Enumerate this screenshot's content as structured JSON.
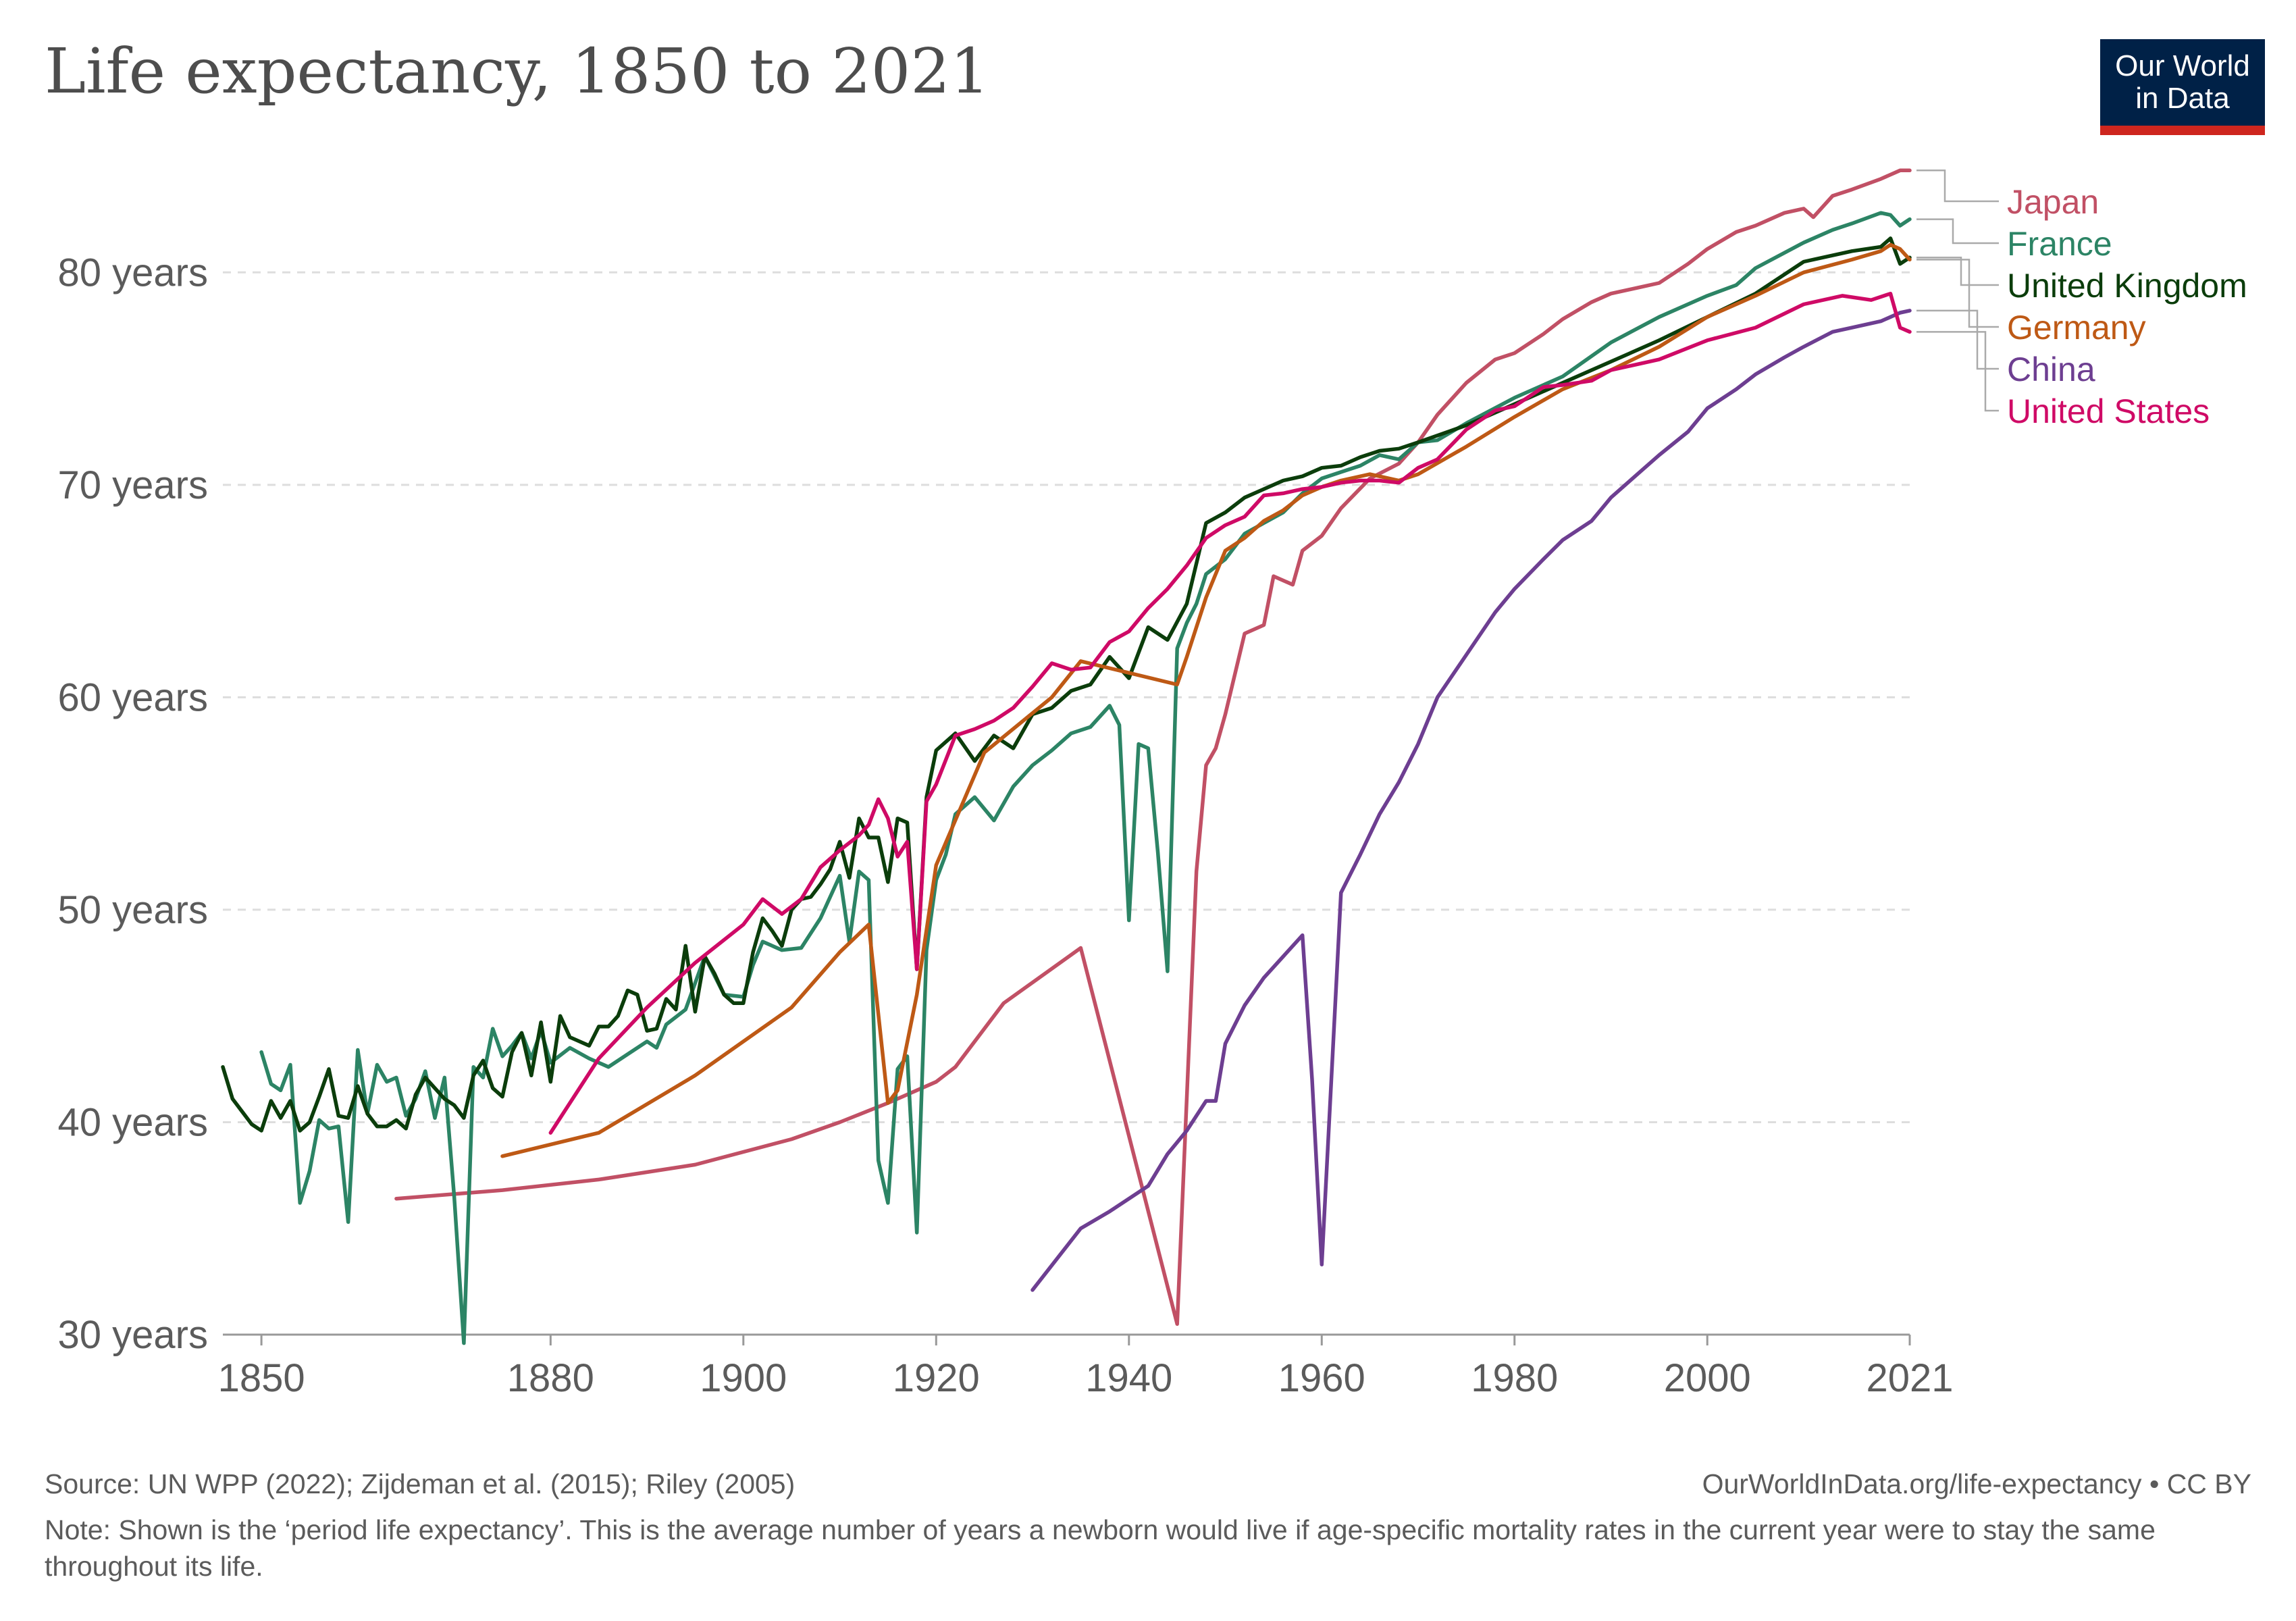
{
  "header": {
    "title": "Life expectancy, 1850 to 2021",
    "logo_line1": "Our World",
    "logo_line2": "in Data"
  },
  "footer": {
    "source": "Source: UN WPP (2022); Zijdeman et al. (2015); Riley (2005)",
    "license": "OurWorldInData.org/life-expectancy • CC BY",
    "note": "Note: Shown is the ‘period life expectancy’. This is the average number of years a newborn would live if age-specific mortality rates in the current year were to stay the same throughout its life."
  },
  "colors": {
    "Japan": "#c15065",
    "France": "#2c8465",
    "United Kingdom": "#0b3d0b",
    "Germany": "#be5915",
    "China": "#6d3e91",
    "United States": "#cf0a66",
    "grid": "#dddddd",
    "axis_text": "#5b5b5b"
  },
  "chart_data": {
    "type": "line",
    "title": "Life expectancy, 1850 to 2021",
    "xlabel": "",
    "ylabel": "",
    "xlim": [
      1846,
      2021
    ],
    "ylim": [
      30,
      85
    ],
    "x_ticks": [
      1850,
      1880,
      1900,
      1920,
      1940,
      1960,
      1980,
      2000,
      2021
    ],
    "x_tick_labels": [
      "1850",
      "1880",
      "1900",
      "1920",
      "1940",
      "1960",
      "1980",
      "2000",
      "2021"
    ],
    "y_ticks": [
      30,
      40,
      50,
      60,
      70,
      80
    ],
    "y_tick_labels": [
      "30 years",
      "40 years",
      "50 years",
      "60 years",
      "70 years",
      "80 years"
    ],
    "grid": true,
    "legend": "right",
    "series": [
      {
        "name": "Japan",
        "x": [
          1864,
          1875,
          1885,
          1895,
          1905,
          1910,
          1915,
          1920,
          1922,
          1927,
          1935,
          1945,
          1947,
          1948,
          1949,
          1950,
          1952,
          1954,
          1955,
          1957,
          1958,
          1960,
          1962,
          1965,
          1968,
          1970,
          1972,
          1975,
          1978,
          1980,
          1983,
          1985,
          1988,
          1990,
          1993,
          1995,
          1998,
          2000,
          2003,
          2005,
          2008,
          2010,
          2011,
          2013,
          2015,
          2018,
          2020,
          2021
        ],
        "y": [
          36.4,
          36.8,
          37.3,
          38.0,
          39.2,
          40.0,
          40.9,
          41.9,
          42.6,
          45.6,
          48.2,
          30.5,
          51.8,
          56.8,
          57.6,
          59.2,
          63.0,
          63.4,
          65.7,
          65.3,
          66.9,
          67.6,
          68.9,
          70.3,
          71.0,
          72.0,
          73.3,
          74.8,
          75.9,
          76.2,
          77.1,
          77.8,
          78.6,
          79.0,
          79.3,
          79.5,
          80.4,
          81.1,
          81.9,
          82.2,
          82.8,
          83.0,
          82.6,
          83.6,
          83.9,
          84.4,
          84.8,
          84.8
        ]
      },
      {
        "name": "France",
        "x": [
          1850,
          1851,
          1852,
          1853,
          1854,
          1855,
          1856,
          1857,
          1858,
          1859,
          1860,
          1861,
          1862,
          1863,
          1864,
          1865,
          1866,
          1867,
          1868,
          1869,
          1870,
          1871,
          1872,
          1873,
          1874,
          1875,
          1876,
          1877,
          1878,
          1879,
          1880,
          1882,
          1884,
          1886,
          1888,
          1890,
          1891,
          1892,
          1894,
          1896,
          1898,
          1900,
          1901,
          1902,
          1904,
          1906,
          1908,
          1910,
          1911,
          1912,
          1913,
          1914,
          1915,
          1916,
          1917,
          1918,
          1919,
          1920,
          1921,
          1922,
          1924,
          1926,
          1928,
          1930,
          1932,
          1934,
          1936,
          1938,
          1939,
          1940,
          1941,
          1942,
          1943,
          1944,
          1945,
          1946,
          1947,
          1948,
          1950,
          1952,
          1954,
          1956,
          1958,
          1960,
          1962,
          1964,
          1966,
          1968,
          1970,
          1972,
          1975,
          1980,
          1985,
          1990,
          1995,
          2000,
          2003,
          2005,
          2010,
          2013,
          2015,
          2018,
          2019,
          2020,
          2021
        ],
        "y": [
          43.3,
          41.8,
          41.5,
          42.7,
          36.2,
          37.7,
          40.1,
          39.7,
          39.8,
          35.3,
          43.4,
          40.4,
          42.7,
          41.9,
          42.1,
          40.3,
          41.1,
          42.4,
          40.2,
          42.1,
          36.5,
          29.6,
          42.6,
          42.1,
          44.4,
          43.1,
          43.6,
          44.2,
          43.0,
          44.3,
          42.8,
          43.5,
          43.0,
          42.6,
          43.2,
          43.8,
          43.5,
          44.6,
          45.3,
          47.8,
          46.0,
          45.9,
          47.4,
          48.5,
          48.1,
          48.2,
          49.6,
          51.6,
          48.5,
          51.8,
          51.4,
          38.2,
          36.2,
          42.5,
          43.1,
          34.8,
          48.1,
          51.4,
          52.6,
          54.5,
          55.3,
          54.2,
          55.8,
          56.8,
          57.5,
          58.3,
          58.6,
          59.6,
          58.7,
          49.5,
          57.8,
          57.6,
          52.7,
          47.1,
          62.3,
          63.5,
          64.4,
          65.8,
          66.5,
          67.7,
          68.2,
          68.7,
          69.6,
          70.3,
          70.6,
          70.9,
          71.4,
          71.2,
          72.0,
          72.1,
          72.9,
          74.1,
          75.1,
          76.7,
          77.9,
          78.9,
          79.4,
          80.2,
          81.4,
          82.0,
          82.3,
          82.8,
          82.7,
          82.2,
          82.5
        ]
      },
      {
        "name": "United Kingdom",
        "x": [
          1846,
          1847,
          1848,
          1849,
          1850,
          1851,
          1852,
          1853,
          1854,
          1855,
          1856,
          1857,
          1858,
          1859,
          1860,
          1861,
          1862,
          1863,
          1864,
          1865,
          1866,
          1867,
          1868,
          1869,
          1870,
          1871,
          1872,
          1873,
          1874,
          1875,
          1876,
          1877,
          1878,
          1879,
          1880,
          1881,
          1882,
          1883,
          1884,
          1885,
          1886,
          1887,
          1888,
          1889,
          1890,
          1891,
          1892,
          1893,
          1894,
          1895,
          1896,
          1897,
          1898,
          1899,
          1900,
          1901,
          1902,
          1903,
          1904,
          1905,
          1906,
          1907,
          1908,
          1909,
          1910,
          1911,
          1912,
          1913,
          1914,
          1915,
          1916,
          1917,
          1918,
          1919,
          1920,
          1922,
          1924,
          1926,
          1928,
          1930,
          1932,
          1934,
          1936,
          1938,
          1940,
          1942,
          1944,
          1946,
          1948,
          1950,
          1952,
          1954,
          1956,
          1958,
          1960,
          1962,
          1964,
          1966,
          1968,
          1970,
          1975,
          1980,
          1985,
          1990,
          1995,
          2000,
          2005,
          2010,
          2015,
          2018,
          2019,
          2020,
          2021
        ],
        "y": [
          42.6,
          41.1,
          40.5,
          39.9,
          39.6,
          41.0,
          40.2,
          41.0,
          39.6,
          40.0,
          41.2,
          42.5,
          40.3,
          40.2,
          41.7,
          40.4,
          39.8,
          39.8,
          40.1,
          39.7,
          41.3,
          42.1,
          41.6,
          41.1,
          40.8,
          40.2,
          42.2,
          42.9,
          41.6,
          41.2,
          43.3,
          44.2,
          42.2,
          44.7,
          41.9,
          45.0,
          44.0,
          43.8,
          43.6,
          44.5,
          44.5,
          45.0,
          46.2,
          46.0,
          44.3,
          44.4,
          45.8,
          45.3,
          48.3,
          45.2,
          47.8,
          47.0,
          46.0,
          45.6,
          45.6,
          48.0,
          49.6,
          49.0,
          48.3,
          50.0,
          50.5,
          50.6,
          51.2,
          51.9,
          53.2,
          51.5,
          54.3,
          53.4,
          53.4,
          51.3,
          54.3,
          54.1,
          47.2,
          55.3,
          57.5,
          58.3,
          57.0,
          58.2,
          57.6,
          59.2,
          59.5,
          60.3,
          60.6,
          61.9,
          60.9,
          63.3,
          62.7,
          64.4,
          68.2,
          68.7,
          69.4,
          69.8,
          70.2,
          70.4,
          70.8,
          70.9,
          71.3,
          71.6,
          71.7,
          72.0,
          72.8,
          73.8,
          74.8,
          75.8,
          76.8,
          77.9,
          79.0,
          80.5,
          81.0,
          81.2,
          81.6,
          80.4,
          80.7
        ]
      },
      {
        "name": "Germany",
        "x": [
          1875,
          1885,
          1895,
          1905,
          1910,
          1913,
          1915,
          1916,
          1918,
          1920,
          1925,
          1932,
          1935,
          1945,
          1946,
          1948,
          1950,
          1952,
          1954,
          1956,
          1958,
          1960,
          1962,
          1965,
          1968,
          1970,
          1975,
          1980,
          1985,
          1990,
          1995,
          2000,
          2005,
          2010,
          2015,
          2018,
          2019,
          2020,
          2021
        ],
        "y": [
          38.4,
          39.5,
          42.2,
          45.4,
          48.0,
          49.3,
          40.9,
          41.5,
          46.0,
          52.1,
          57.4,
          60.0,
          61.7,
          60.6,
          61.9,
          64.7,
          66.9,
          67.5,
          68.3,
          68.8,
          69.5,
          69.9,
          70.2,
          70.5,
          70.2,
          70.5,
          71.8,
          73.2,
          74.5,
          75.4,
          76.5,
          77.9,
          78.9,
          80.0,
          80.6,
          81.0,
          81.3,
          81.1,
          80.6
        ]
      },
      {
        "name": "China",
        "x": [
          1930,
          1935,
          1938,
          1940,
          1942,
          1944,
          1946,
          1948,
          1949,
          1950,
          1952,
          1954,
          1956,
          1958,
          1959,
          1960,
          1961,
          1962,
          1964,
          1966,
          1968,
          1970,
          1972,
          1975,
          1978,
          1980,
          1983,
          1985,
          1988,
          1990,
          1993,
          1995,
          1998,
          2000,
          2003,
          2005,
          2008,
          2010,
          2013,
          2015,
          2018,
          2019,
          2020,
          2021
        ],
        "y": [
          32.1,
          35.0,
          35.8,
          36.4,
          37.0,
          38.5,
          39.6,
          41.0,
          41.0,
          43.7,
          45.5,
          46.8,
          47.8,
          48.8,
          42.0,
          33.3,
          42.0,
          50.8,
          52.6,
          54.5,
          56.0,
          57.8,
          60.0,
          62.0,
          64.0,
          65.1,
          66.5,
          67.4,
          68.3,
          69.4,
          70.6,
          71.4,
          72.5,
          73.6,
          74.5,
          75.2,
          76.0,
          76.5,
          77.2,
          77.4,
          77.7,
          77.9,
          78.1,
          78.2
        ]
      },
      {
        "name": "United States",
        "x": [
          1880,
          1885,
          1890,
          1895,
          1900,
          1902,
          1904,
          1906,
          1908,
          1910,
          1912,
          1913,
          1914,
          1915,
          1916,
          1917,
          1918,
          1919,
          1920,
          1922,
          1924,
          1926,
          1928,
          1930,
          1932,
          1934,
          1936,
          1938,
          1940,
          1942,
          1944,
          1946,
          1948,
          1950,
          1952,
          1954,
          1956,
          1958,
          1960,
          1962,
          1964,
          1966,
          1968,
          1970,
          1972,
          1975,
          1978,
          1980,
          1983,
          1985,
          1988,
          1990,
          1995,
          2000,
          2005,
          2010,
          2014,
          2017,
          2019,
          2020,
          2021
        ],
        "y": [
          39.5,
          43.0,
          45.4,
          47.5,
          49.3,
          50.5,
          49.8,
          50.5,
          52.0,
          52.8,
          53.5,
          54.0,
          55.2,
          54.3,
          52.5,
          53.2,
          47.2,
          55.1,
          55.9,
          58.2,
          58.5,
          58.9,
          59.5,
          60.5,
          61.6,
          61.3,
          61.4,
          62.6,
          63.1,
          64.2,
          65.1,
          66.2,
          67.5,
          68.1,
          68.5,
          69.5,
          69.6,
          69.8,
          69.9,
          70.1,
          70.2,
          70.2,
          70.1,
          70.8,
          71.2,
          72.6,
          73.5,
          73.7,
          74.6,
          74.7,
          74.9,
          75.4,
          75.9,
          76.8,
          77.4,
          78.5,
          78.9,
          78.7,
          79.0,
          77.4,
          77.2
        ]
      }
    ]
  },
  "legend": [
    {
      "label": "Japan"
    },
    {
      "label": "France"
    },
    {
      "label": "United Kingdom"
    },
    {
      "label": "Germany"
    },
    {
      "label": "China"
    },
    {
      "label": "United States"
    }
  ]
}
